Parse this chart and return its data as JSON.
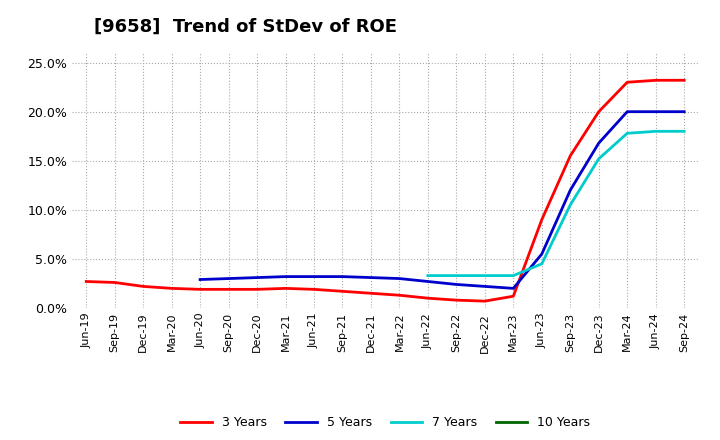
{
  "title": "[9658]  Trend of StDev of ROE",
  "title_fontsize": 13,
  "background_color": "#ffffff",
  "plot_bg_color": "#ffffff",
  "grid_color": "#aaaaaa",
  "ylim": [
    0.0,
    0.26
  ],
  "yticks": [
    0.0,
    0.05,
    0.1,
    0.15,
    0.2,
    0.25
  ],
  "ytick_labels": [
    "0.0%",
    "5.0%",
    "10.0%",
    "15.0%",
    "20.0%",
    "25.0%"
  ],
  "x_labels": [
    "Jun-19",
    "Sep-19",
    "Dec-19",
    "Mar-20",
    "Jun-20",
    "Sep-20",
    "Dec-20",
    "Mar-21",
    "Jun-21",
    "Sep-21",
    "Dec-21",
    "Mar-22",
    "Jun-22",
    "Sep-22",
    "Dec-22",
    "Mar-23",
    "Jun-23",
    "Sep-23",
    "Dec-23",
    "Mar-24",
    "Jun-24",
    "Sep-24"
  ],
  "series": {
    "3 Years": {
      "color": "#ff0000",
      "values": [
        0.027,
        0.026,
        0.022,
        0.02,
        0.019,
        0.019,
        0.019,
        0.02,
        0.019,
        0.017,
        0.015,
        0.013,
        0.01,
        0.008,
        0.007,
        0.012,
        0.09,
        0.155,
        0.2,
        0.23,
        0.232,
        0.232
      ]
    },
    "5 Years": {
      "color": "#0000cc",
      "values": [
        null,
        null,
        null,
        null,
        0.029,
        0.03,
        0.031,
        0.032,
        0.032,
        0.032,
        0.031,
        0.03,
        0.027,
        0.024,
        0.022,
        0.02,
        0.055,
        0.12,
        0.168,
        0.2,
        0.2,
        0.2
      ]
    },
    "7 Years": {
      "color": "#00cccc",
      "values": [
        null,
        null,
        null,
        null,
        null,
        null,
        null,
        null,
        null,
        null,
        null,
        null,
        0.033,
        0.033,
        0.033,
        0.033,
        0.045,
        0.105,
        0.152,
        0.178,
        0.18,
        0.18
      ]
    },
    "10 Years": {
      "color": "#006600",
      "values": [
        null,
        null,
        null,
        null,
        null,
        null,
        null,
        null,
        null,
        null,
        null,
        null,
        null,
        null,
        null,
        null,
        null,
        null,
        null,
        null,
        null,
        null
      ]
    }
  }
}
